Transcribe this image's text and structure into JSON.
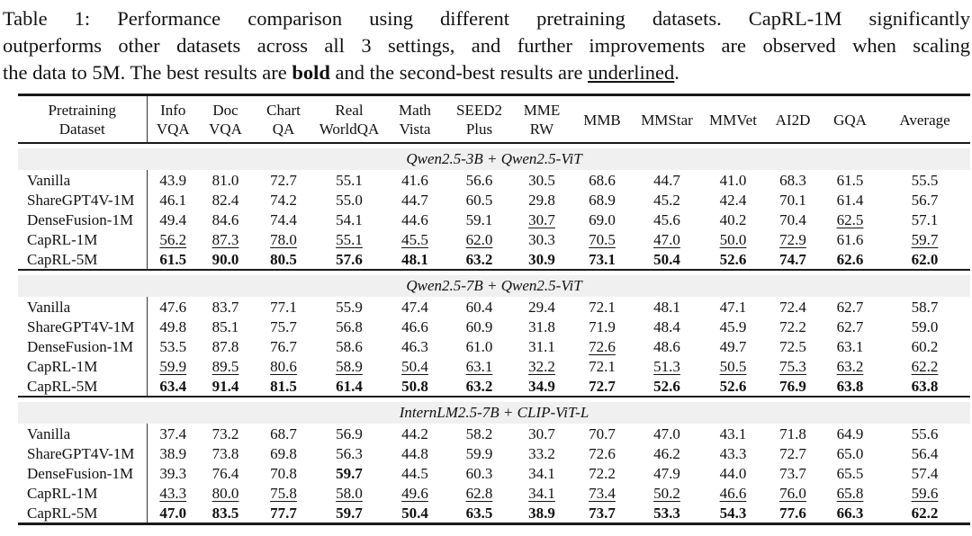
{
  "page": {
    "background": "#ffffff",
    "text_color": "#111111"
  },
  "caption": {
    "lines": [
      {
        "text": "Table 1: Performance comparison using different pretraining datasets. CapRL-1M significantly"
      },
      {
        "text": "outperforms other datasets across all 3 settings, and further improvements are observed when scaling"
      },
      {
        "prefix": "the data to 5M. The best results are ",
        "bold_word": "bold",
        "mid": " and the second-best results are ",
        "underline_word": "underlined",
        "suffix": "."
      }
    ]
  },
  "table": {
    "band_bg": "#f0f0f0",
    "rule_color": "#1a1a1a",
    "columns": [
      [
        "Pretraining",
        "Dataset"
      ],
      [
        "Info",
        "VQA"
      ],
      [
        "Doc",
        "VQA"
      ],
      [
        "Chart",
        "QA"
      ],
      [
        "Real",
        "WorldQA"
      ],
      [
        "Math",
        "Vista"
      ],
      [
        "SEED2",
        "Plus"
      ],
      [
        "MME",
        "RW"
      ],
      [
        "MMB"
      ],
      [
        "MMStar"
      ],
      [
        "MMVet"
      ],
      [
        "AI2D"
      ],
      [
        "GQA"
      ],
      [
        "Average"
      ]
    ],
    "sections": [
      {
        "title": "Qwen2.5-3B + Qwen2.5-ViT",
        "rows": [
          {
            "label": "Vanilla",
            "values": [
              "43.9",
              "81.0",
              "72.7",
              "55.1",
              "41.6",
              "56.6",
              "30.5",
              "68.6",
              "44.7",
              "41.0",
              "68.3",
              "61.5",
              "55.5"
            ],
            "bold": [],
            "underline": []
          },
          {
            "label": "ShareGPT4V-1M",
            "values": [
              "46.1",
              "82.4",
              "74.2",
              "55.0",
              "44.7",
              "60.5",
              "29.8",
              "68.9",
              "45.2",
              "42.4",
              "70.1",
              "61.4",
              "56.7"
            ],
            "bold": [],
            "underline": []
          },
          {
            "label": "DenseFusion-1M",
            "values": [
              "49.4",
              "84.6",
              "74.4",
              "54.1",
              "44.6",
              "59.1",
              "30.7",
              "69.0",
              "45.6",
              "40.2",
              "70.4",
              "62.5",
              "57.1"
            ],
            "bold": [],
            "underline": [
              6,
              11
            ]
          },
          {
            "label": "CapRL-1M",
            "values": [
              "56.2",
              "87.3",
              "78.0",
              "55.1",
              "45.5",
              "62.0",
              "30.3",
              "70.5",
              "47.0",
              "50.0",
              "72.9",
              "61.6",
              "59.7"
            ],
            "bold": [],
            "underline": [
              0,
              1,
              2,
              3,
              4,
              5,
              7,
              8,
              9,
              10,
              12
            ]
          },
          {
            "label": "CapRL-5M",
            "values": [
              "61.5",
              "90.0",
              "80.5",
              "57.6",
              "48.1",
              "63.2",
              "30.9",
              "73.1",
              "50.4",
              "52.6",
              "74.7",
              "62.6",
              "62.0"
            ],
            "bold": [
              0,
              1,
              2,
              3,
              4,
              5,
              6,
              7,
              8,
              9,
              10,
              11,
              12
            ],
            "underline": []
          }
        ]
      },
      {
        "title": "Qwen2.5-7B + Qwen2.5-ViT",
        "rows": [
          {
            "label": "Vanilla",
            "values": [
              "47.6",
              "83.7",
              "77.1",
              "55.9",
              "47.4",
              "60.4",
              "29.4",
              "72.1",
              "48.1",
              "47.1",
              "72.4",
              "62.7",
              "58.7"
            ],
            "bold": [],
            "underline": []
          },
          {
            "label": "ShareGPT4V-1M",
            "values": [
              "49.8",
              "85.1",
              "75.7",
              "56.8",
              "46.6",
              "60.9",
              "31.8",
              "71.9",
              "48.4",
              "45.9",
              "72.2",
              "62.7",
              "59.0"
            ],
            "bold": [],
            "underline": []
          },
          {
            "label": "DenseFusion-1M",
            "values": [
              "53.5",
              "87.8",
              "76.7",
              "58.6",
              "46.3",
              "61.0",
              "31.1",
              "72.6",
              "48.6",
              "49.7",
              "72.5",
              "63.1",
              "60.2"
            ],
            "bold": [],
            "underline": [
              7
            ]
          },
          {
            "label": "CapRL-1M",
            "values": [
              "59.9",
              "89.5",
              "80.6",
              "58.9",
              "50.4",
              "63.1",
              "32.2",
              "72.1",
              "51.3",
              "50.5",
              "75.3",
              "63.2",
              "62.2"
            ],
            "bold": [],
            "underline": [
              0,
              1,
              2,
              3,
              4,
              5,
              6,
              8,
              9,
              10,
              11,
              12
            ]
          },
          {
            "label": "CapRL-5M",
            "values": [
              "63.4",
              "91.4",
              "81.5",
              "61.4",
              "50.8",
              "63.2",
              "34.9",
              "72.7",
              "52.6",
              "52.6",
              "76.9",
              "63.8",
              "63.8"
            ],
            "bold": [
              0,
              1,
              2,
              3,
              4,
              5,
              6,
              7,
              8,
              9,
              10,
              11,
              12
            ],
            "underline": []
          }
        ]
      },
      {
        "title": "InternLM2.5-7B + CLIP-ViT-L",
        "rows": [
          {
            "label": "Vanilla",
            "values": [
              "37.4",
              "73.2",
              "68.7",
              "56.9",
              "44.2",
              "58.2",
              "30.7",
              "70.7",
              "47.0",
              "43.1",
              "71.8",
              "64.9",
              "55.6"
            ],
            "bold": [],
            "underline": []
          },
          {
            "label": "ShareGPT4V-1M",
            "values": [
              "38.9",
              "73.8",
              "69.8",
              "56.3",
              "44.8",
              "59.9",
              "33.2",
              "72.6",
              "46.2",
              "43.3",
              "72.7",
              "65.0",
              "56.4"
            ],
            "bold": [],
            "underline": []
          },
          {
            "label": "DenseFusion-1M",
            "values": [
              "39.3",
              "76.4",
              "70.8",
              "59.7",
              "44.5",
              "60.3",
              "34.1",
              "72.2",
              "47.9",
              "44.0",
              "73.7",
              "65.5",
              "57.4"
            ],
            "bold": [
              3
            ],
            "underline": []
          },
          {
            "label": "CapRL-1M",
            "values": [
              "43.3",
              "80.0",
              "75.8",
              "58.0",
              "49.6",
              "62.8",
              "34.1",
              "73.4",
              "50.2",
              "46.6",
              "76.0",
              "65.8",
              "59.6"
            ],
            "bold": [],
            "underline": [
              0,
              1,
              2,
              3,
              4,
              5,
              6,
              7,
              8,
              9,
              10,
              11,
              12
            ]
          },
          {
            "label": "CapRL-5M",
            "values": [
              "47.0",
              "83.5",
              "77.7",
              "59.7",
              "50.4",
              "63.5",
              "38.9",
              "73.7",
              "53.3",
              "54.3",
              "77.6",
              "66.3",
              "62.2"
            ],
            "bold": [
              0,
              1,
              2,
              3,
              4,
              5,
              6,
              7,
              8,
              9,
              10,
              11,
              12
            ],
            "underline": []
          }
        ]
      }
    ]
  }
}
